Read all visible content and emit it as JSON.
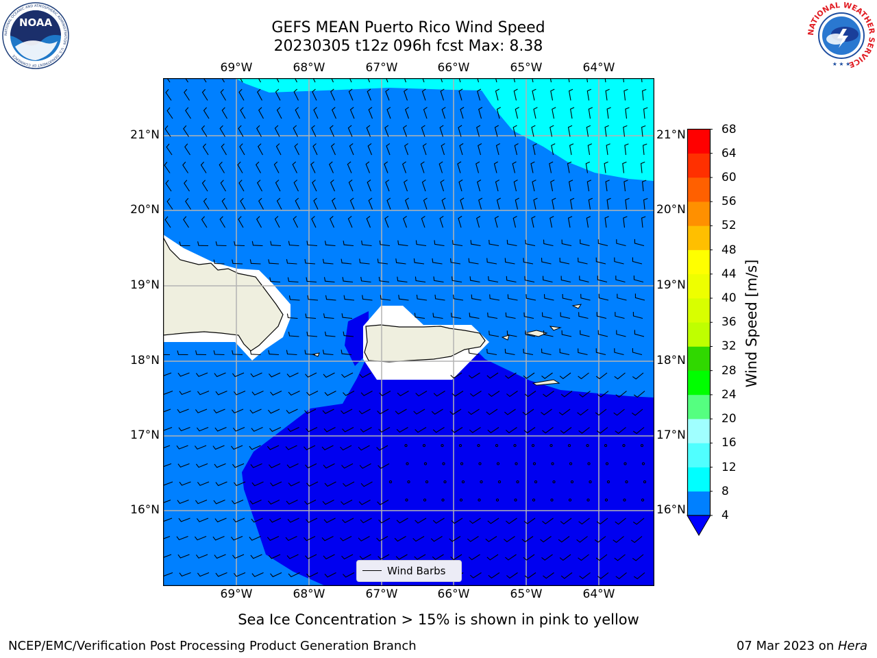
{
  "header": {
    "title_line1": "GEFS MEAN Puerto Rico Wind Speed",
    "title_line2": "20230305 t12z 096h fcst   Max: 8.38"
  },
  "logos": {
    "left": {
      "text": "NOAA",
      "ring_text": "NATIONAL OCEANIC AND ATMOSPHERIC ADMINISTRATION · U.S. DEPARTMENT OF COMMERCE"
    },
    "right": {
      "ring_text": "NATIONAL WEATHER SERVICE"
    }
  },
  "map": {
    "lon_labels": [
      "69°W",
      "68°W",
      "67°W",
      "66°W",
      "65°W",
      "64°W"
    ],
    "lat_labels": [
      "21°N",
      "20°N",
      "19°N",
      "18°N",
      "17°N",
      "16°N"
    ],
    "lon_range": [
      -70.0,
      -63.25
    ],
    "lat_range": [
      15.0,
      21.75
    ],
    "legend_label": "Wind Barbs",
    "colors": {
      "lightest_band": "#00ffff",
      "mid_band": "#0080ff",
      "low_band": "#0000f0",
      "land": "#efefdf",
      "masked": "#ffffff"
    }
  },
  "colorbar": {
    "title": "Wind Speed [m/s]",
    "ticks": [
      "68",
      "64",
      "60",
      "56",
      "52",
      "48",
      "44",
      "40",
      "36",
      "32",
      "28",
      "24",
      "20",
      "16",
      "12",
      "8",
      "4"
    ],
    "colors": [
      "#0000ff",
      "#0080ff",
      "#00ffff",
      "#40ffff",
      "#80ffff",
      "#b0ffff",
      "#55ff80",
      "#00ff00",
      "#40e000",
      "#88e000",
      "#c0ff00",
      "#e8ff00",
      "#ffff00",
      "#ffd000",
      "#ffb000",
      "#ff8800",
      "#ff5500",
      "#ff2000",
      "#ff0000"
    ]
  },
  "caption": "Sea Ice Concentration > 15% is shown in pink to yellow",
  "footer": {
    "left": "NCEP/EMC/Verification Post Processing Product Generation Branch",
    "right_prefix": "07 Mar 2023 on ",
    "right_host": "Hera"
  }
}
